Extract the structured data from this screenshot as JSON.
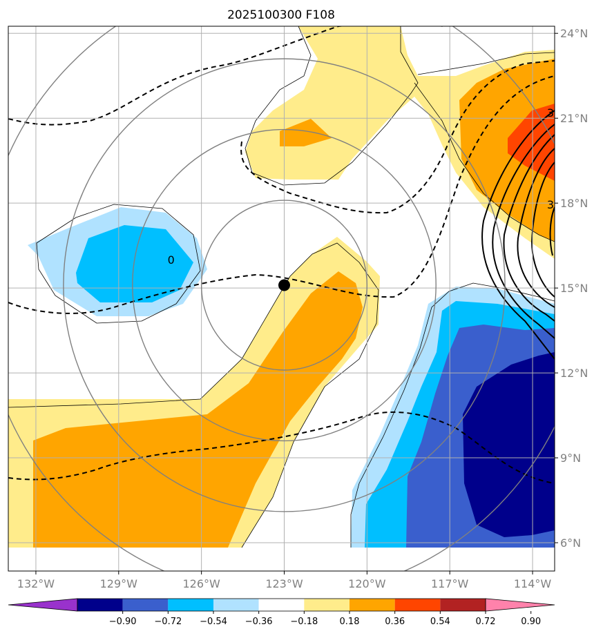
{
  "title": "2025100300 F108",
  "map": {
    "lon_min": -133,
    "lon_max": -113.2,
    "lat_min": 5,
    "lat_max": 24.25,
    "grid_lons": [
      -132,
      -129,
      -126,
      -123,
      -120,
      -117,
      -114
    ],
    "grid_lats": [
      6,
      9,
      12,
      15,
      18,
      21,
      24
    ],
    "xticks": [
      {
        "lon": -132,
        "label": "132°W"
      },
      {
        "lon": -129,
        "label": "129°W"
      },
      {
        "lon": -126,
        "label": "126°W"
      },
      {
        "lon": -123,
        "label": "123°W"
      },
      {
        "lon": -120,
        "label": "120°W"
      },
      {
        "lon": -117,
        "label": "117°W"
      },
      {
        "lon": -114,
        "label": "114°W"
      }
    ],
    "yticks": [
      {
        "lat": 24,
        "label": "24°N"
      },
      {
        "lat": 21,
        "label": "21°N"
      },
      {
        "lat": 18,
        "label": "18°N"
      },
      {
        "lat": 15,
        "label": "15°N"
      },
      {
        "lat": 12,
        "label": "12°N"
      },
      {
        "lat": 9,
        "label": "9°N"
      },
      {
        "lat": 6,
        "label": "6°N"
      }
    ],
    "storm_center": {
      "lon": -123,
      "lat": 15.1
    },
    "range_ring_radii_deg": [
      3,
      5.5,
      8,
      11
    ],
    "contour_labels": [
      {
        "text": "0",
        "lon": -127.1,
        "lat": 16.0
      },
      {
        "text": "3",
        "lon": -113.35,
        "lat": 21.2
      },
      {
        "text": "3",
        "lon": -113.35,
        "lat": 17.96
      }
    ]
  },
  "colorbar": {
    "colors": [
      "#9932cc",
      "#00008b",
      "#3a5fcd",
      "#00bfff",
      "#b0e2ff",
      "#ffffff",
      "#ffec8b",
      "#ffa500",
      "#ff4500",
      "#b22222",
      "#ff82ab"
    ],
    "labels": [
      "−0.90",
      "−0.72",
      "−0.54",
      "−0.36",
      "−0.18",
      "0.18",
      "0.36",
      "0.54",
      "0.72",
      "0.90"
    ]
  },
  "colors": {
    "grid": "#b0b0b0",
    "ring": "#808080",
    "pale_yellow": "#ffec8b",
    "orange": "#ffa500",
    "red_orange": "#ff4500",
    "light_blue": "#b0e2ff",
    "sky_blue": "#00bfff",
    "royal_blue": "#3a5fcd",
    "navy": "#00008b"
  }
}
